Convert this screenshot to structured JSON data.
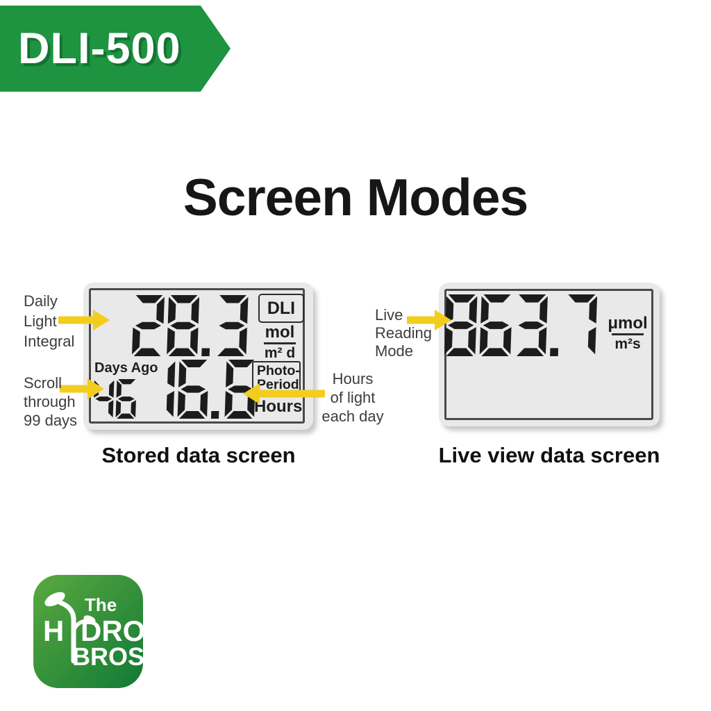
{
  "badge": {
    "label": "DLI-500"
  },
  "title": "Screen Modes",
  "stored_screen": {
    "caption": "Stored data screen",
    "dli": {
      "value": "28.3",
      "tag": "DLI",
      "unit_num": "mol",
      "unit_den": "m² d"
    },
    "days_ago": {
      "label": "Days Ago",
      "value": "46"
    },
    "photoperiod": {
      "value": "16.6",
      "tag_line1": "Photo-",
      "tag_line2": "Period",
      "unit": "Hours"
    }
  },
  "live_screen": {
    "caption": "Live view data screen",
    "reading": {
      "value": "863.7",
      "unit_num": "μmol",
      "unit_den": "m²s"
    }
  },
  "annotations": {
    "daily_light_integral": [
      "Daily",
      "Light",
      "Integral"
    ],
    "scroll_days": [
      "Scroll",
      "through",
      "99 days"
    ],
    "hours_of_light": [
      "Hours",
      "of light",
      "each day"
    ],
    "live_reading": [
      "Live",
      "Reading",
      "Mode"
    ]
  },
  "logo": {
    "line1": "The",
    "word_h": "H",
    "word_rest": "DRO",
    "line3": "BROS"
  },
  "colors": {
    "banner_green": "#1e9340",
    "arrow_yellow": "#f2cd1d",
    "segment_dark": "#1c1c1c",
    "logo_green_light": "#5aa93f",
    "logo_green_dark": "#127a35"
  }
}
